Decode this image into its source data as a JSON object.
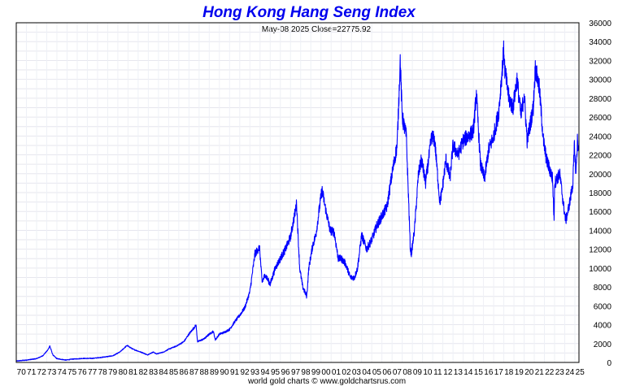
{
  "chart_data": {
    "type": "line",
    "title": "Hong Kong Hang Seng Index",
    "subtitle": "May-08  2025   Close=22775.92",
    "footer": "world gold charts © www.goldchartsrus.com",
    "xlabel": "",
    "ylabel": "",
    "xlim": [
      1970,
      2025.4
    ],
    "ylim": [
      0,
      36000
    ],
    "y_ticks": [
      0,
      2000,
      4000,
      6000,
      8000,
      10000,
      12000,
      14000,
      16000,
      18000,
      20000,
      22000,
      24000,
      26000,
      28000,
      30000,
      32000,
      34000,
      36000
    ],
    "x_ticks": [
      "70",
      "71",
      "72",
      "73",
      "74",
      "75",
      "76",
      "77",
      "78",
      "79",
      "80",
      "81",
      "82",
      "83",
      "84",
      "85",
      "86",
      "87",
      "88",
      "89",
      "90",
      "91",
      "92",
      "93",
      "94",
      "95",
      "96",
      "97",
      "98",
      "99",
      "00",
      "01",
      "02",
      "03",
      "04",
      "05",
      "06",
      "07",
      "08",
      "09",
      "10",
      "11",
      "12",
      "13",
      "14",
      "15",
      "16",
      "17",
      "18",
      "19",
      "20",
      "21",
      "22",
      "23",
      "24",
      "25"
    ],
    "grid": true,
    "series": [
      {
        "color": "#0000ff",
        "x": [
          1970.0,
          1971.0,
          1972.0,
          1972.6,
          1973.1,
          1973.3,
          1973.6,
          1974.0,
          1974.9,
          1975.5,
          1976.5,
          1977.5,
          1978.5,
          1979.5,
          1980.2,
          1980.9,
          1981.5,
          1982.0,
          1982.5,
          1982.9,
          1983.5,
          1983.8,
          1984.5,
          1985.0,
          1985.8,
          1986.5,
          1987.0,
          1987.7,
          1987.85,
          1988.5,
          1989.0,
          1989.4,
          1989.6,
          1990.0,
          1990.5,
          1991.0,
          1991.5,
          1992.0,
          1992.5,
          1993.0,
          1993.5,
          1993.95,
          1994.2,
          1994.5,
          1995.0,
          1995.5,
          1996.0,
          1996.5,
          1997.0,
          1997.6,
          1997.9,
          1998.2,
          1998.6,
          1998.8,
          1999.2,
          1999.5,
          1999.9,
          2000.1,
          2000.5,
          2000.9,
          2001.3,
          2001.7,
          2002.0,
          2002.4,
          2002.9,
          2003.3,
          2003.6,
          2004.0,
          2004.5,
          2005.0,
          2005.5,
          2006.0,
          2006.5,
          2007.0,
          2007.5,
          2007.8,
          2008.0,
          2008.4,
          2008.8,
          2008.9,
          2009.2,
          2009.6,
          2009.9,
          2010.3,
          2010.9,
          2011.2,
          2011.7,
          2011.9,
          2012.3,
          2012.7,
          2013.0,
          2013.5,
          2014.0,
          2014.5,
          2015.0,
          2015.3,
          2015.7,
          2016.1,
          2016.5,
          2017.0,
          2017.5,
          2018.0,
          2018.1,
          2018.5,
          2018.9,
          2019.3,
          2019.7,
          2020.0,
          2020.3,
          2020.9,
          2021.1,
          2021.5,
          2021.9,
          2022.2,
          2022.8,
          2022.95,
          2023.0,
          2023.5,
          2023.9,
          2024.1,
          2024.5,
          2024.8,
          2024.95,
          2025.1,
          2025.25,
          2025.35
        ],
        "y": [
          150,
          250,
          400,
          700,
          1300,
          1750,
          800,
          400,
          250,
          350,
          420,
          430,
          550,
          700,
          1100,
          1800,
          1400,
          1200,
          1000,
          800,
          1100,
          900,
          1100,
          1400,
          1750,
          2200,
          3000,
          3950,
          2200,
          2500,
          3000,
          3300,
          2400,
          3000,
          3200,
          3500,
          4300,
          5000,
          5800,
          7500,
          11500,
          12200,
          8500,
          9300,
          8300,
          10000,
          11000,
          12000,
          13300,
          16800,
          10000,
          8000,
          7000,
          10000,
          12500,
          13500,
          16800,
          18300,
          16000,
          14000,
          13800,
          11000,
          11000,
          10500,
          9000,
          9000,
          10000,
          13500,
          12000,
          13000,
          14500,
          15500,
          16500,
          20000,
          23000,
          32000,
          26000,
          24000,
          12000,
          11500,
          14000,
          20000,
          21500,
          19000,
          24000,
          23500,
          17000,
          18000,
          21500,
          19500,
          23000,
          22000,
          23500,
          24000,
          24500,
          28500,
          21000,
          19500,
          22500,
          24000,
          26500,
          33200,
          31000,
          28000,
          27000,
          30000,
          26000,
          28500,
          23500,
          27000,
          31200,
          29000,
          23500,
          21500,
          19500,
          15000,
          19000,
          20000,
          16500,
          15000,
          17000,
          19000,
          23000,
          20000,
          23500,
          22700
        ]
      }
    ]
  }
}
